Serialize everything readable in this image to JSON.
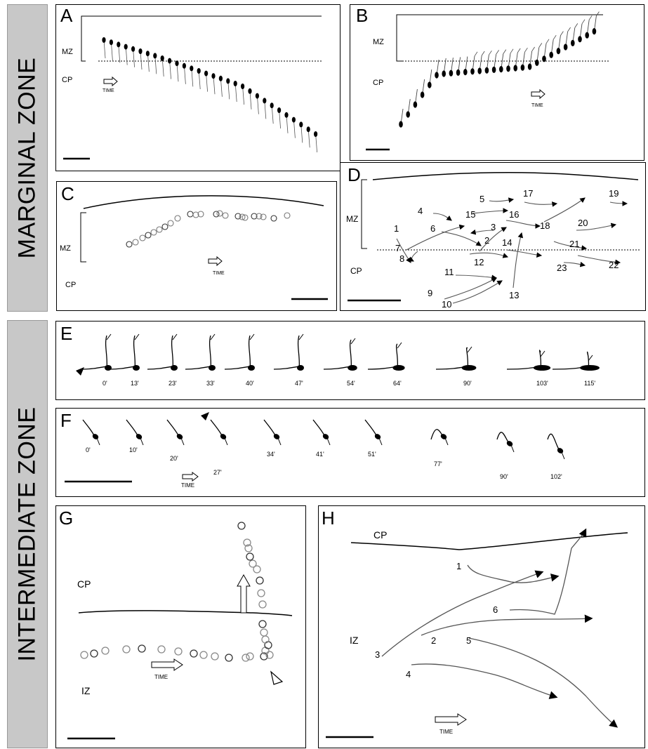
{
  "sections": {
    "marginal": "MARGINAL ZONE",
    "intermediate": "INTERMEDIATE ZONE"
  },
  "panels": {
    "A": {
      "label": "A",
      "mz": "MZ",
      "cp": "CP",
      "time": "TIME"
    },
    "B": {
      "label": "B",
      "mz": "MZ",
      "cp": "CP",
      "time": "TIME"
    },
    "C": {
      "label": "C",
      "mz": "MZ",
      "cp": "CP",
      "time": "TIME"
    },
    "D": {
      "label": "D",
      "mz": "MZ",
      "cp": "CP",
      "track_numbers": [
        "1",
        "2",
        "3",
        "4",
        "5",
        "6",
        "7",
        "8",
        "9",
        "10",
        "11",
        "12",
        "13",
        "14",
        "15",
        "16",
        "17",
        "18",
        "19",
        "20",
        "21",
        "22",
        "23"
      ]
    },
    "E": {
      "label": "E",
      "times": [
        "0'",
        "13'",
        "23'",
        "33'",
        "40'",
        "47'",
        "54'",
        "64'",
        "90'",
        "103'",
        "115'"
      ]
    },
    "F": {
      "label": "F",
      "time": "TIME",
      "times": [
        "0'",
        "10'",
        "20'",
        "27'",
        "34'",
        "41'",
        "51'",
        "77'",
        "90'",
        "102'"
      ]
    },
    "G": {
      "label": "G",
      "cp": "CP",
      "iz": "IZ",
      "time": "TIME"
    },
    "H": {
      "label": "H",
      "cp": "CP",
      "iz": "IZ",
      "time": "TIME",
      "track_numbers": [
        "1",
        "2",
        "3",
        "4",
        "5",
        "6"
      ]
    }
  }
}
